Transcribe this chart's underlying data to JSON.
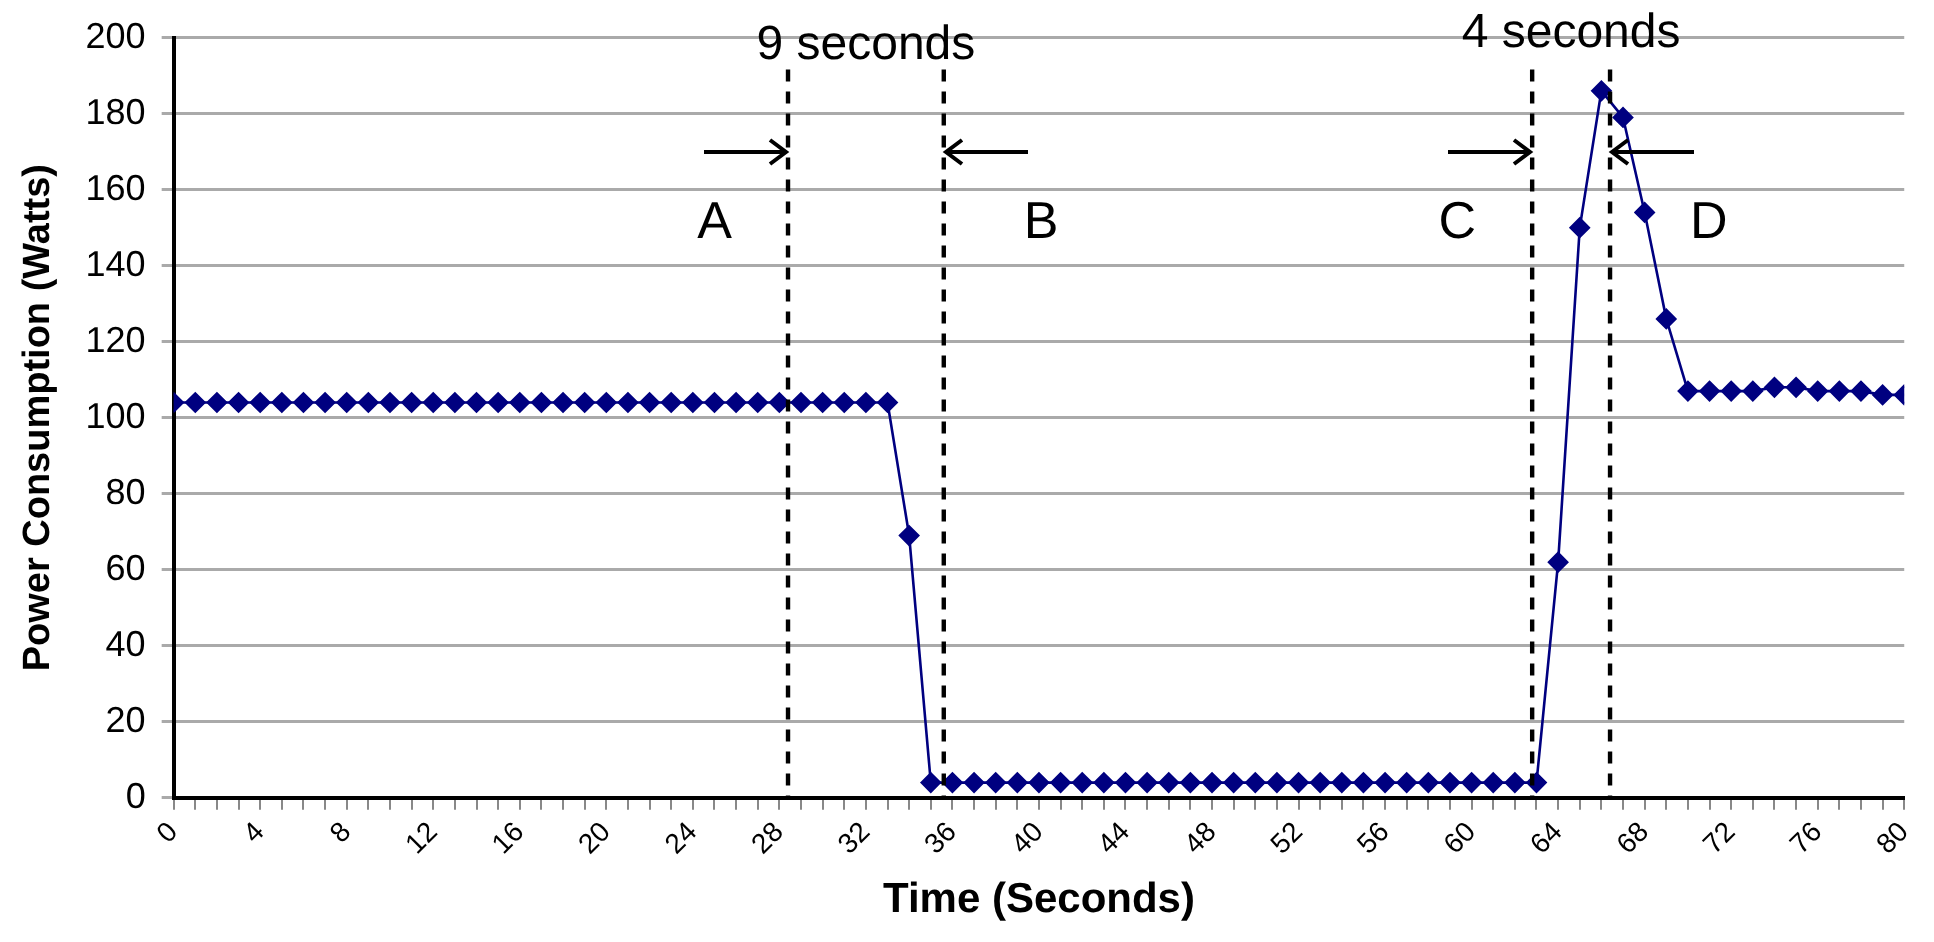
{
  "chart_data": {
    "type": "line",
    "xlabel": "Time (Seconds)",
    "ylabel": "Power Consumption (Watts)",
    "series": [
      {
        "color": "#000080",
        "x": [
          0,
          1,
          2,
          3,
          4,
          5,
          6,
          7,
          8,
          9,
          10,
          11,
          12,
          13,
          14,
          15,
          16,
          17,
          18,
          19,
          20,
          21,
          22,
          23,
          24,
          25,
          26,
          27,
          28,
          29,
          30,
          31,
          32,
          33,
          34,
          35,
          36,
          37,
          38,
          39,
          40,
          41,
          42,
          43,
          44,
          45,
          46,
          47,
          48,
          49,
          50,
          51,
          52,
          53,
          54,
          55,
          56,
          57,
          58,
          59,
          60,
          61,
          62,
          63,
          64,
          65,
          66,
          67,
          68,
          69,
          70,
          71,
          72,
          73,
          74,
          75,
          76,
          77,
          78,
          79,
          80
        ],
        "values": [
          104,
          104,
          104,
          104,
          104,
          104,
          104,
          104,
          104,
          104,
          104,
          104,
          104,
          104,
          104,
          104,
          104,
          104,
          104,
          104,
          104,
          104,
          104,
          104,
          104,
          104,
          104,
          104,
          104,
          104,
          104,
          104,
          104,
          104,
          69,
          4,
          4,
          4,
          4,
          4,
          4,
          4,
          4,
          4,
          4,
          4,
          4,
          4,
          4,
          4,
          4,
          4,
          4,
          4,
          4,
          4,
          4,
          4,
          4,
          4,
          4,
          4,
          4,
          4,
          62,
          150,
          186,
          179,
          154,
          126,
          107,
          107,
          107,
          107,
          108,
          108,
          107,
          107,
          107,
          106,
          106
        ]
      }
    ],
    "xlim": [
      0,
      80
    ],
    "xticks": [
      0,
      {
        "value": 1,
        "label": null
      },
      {
        "value": 2,
        "label": null
      },
      {
        "value": 3,
        "label": null
      },
      4,
      {
        "value": 5,
        "label": null
      },
      {
        "value": 6,
        "label": null
      },
      {
        "value": 7,
        "label": null
      },
      8,
      {
        "value": 9,
        "label": null
      },
      {
        "value": 10,
        "label": null
      },
      {
        "value": 11,
        "label": null
      },
      12,
      {
        "value": 13,
        "label": null
      },
      {
        "value": 14,
        "label": null
      },
      {
        "value": 15,
        "label": null
      },
      16,
      {
        "value": 17,
        "label": null
      },
      {
        "value": 18,
        "label": null
      },
      {
        "value": 19,
        "label": null
      },
      20,
      {
        "value": 21,
        "label": null
      },
      {
        "value": 22,
        "label": null
      },
      {
        "value": 23,
        "label": null
      },
      24,
      {
        "value": 25,
        "label": null
      },
      {
        "value": 26,
        "label": null
      },
      {
        "value": 27,
        "label": null
      },
      28,
      {
        "value": 29,
        "label": null
      },
      {
        "value": 30,
        "label": null
      },
      {
        "value": 31,
        "label": null
      },
      32,
      {
        "value": 33,
        "label": null
      },
      {
        "value": 34,
        "label": null
      },
      {
        "value": 35,
        "label": null
      },
      36,
      {
        "value": 37,
        "label": null
      },
      {
        "value": 38,
        "label": null
      },
      {
        "value": 39,
        "label": null
      },
      40,
      {
        "value": 41,
        "label": null
      },
      {
        "value": 42,
        "label": null
      },
      {
        "value": 43,
        "label": null
      },
      44,
      {
        "value": 45,
        "label": null
      },
      {
        "value": 46,
        "label": null
      },
      {
        "value": 47,
        "label": null
      },
      48,
      {
        "value": 49,
        "label": null
      },
      {
        "value": 50,
        "label": null
      },
      {
        "value": 51,
        "label": null
      },
      52,
      {
        "value": 53,
        "label": null
      },
      {
        "value": 54,
        "label": null
      },
      {
        "value": 55,
        "label": null
      },
      56,
      {
        "value": 57,
        "label": null
      },
      {
        "value": 58,
        "label": null
      },
      {
        "value": 59,
        "label": null
      },
      60,
      {
        "value": 61,
        "label": null
      },
      {
        "value": 62,
        "label": null
      },
      {
        "value": 63,
        "label": null
      },
      64,
      {
        "value": 65,
        "label": null
      },
      {
        "value": 66,
        "label": null
      },
      {
        "value": 67,
        "label": null
      },
      68,
      {
        "value": 69,
        "label": null
      },
      {
        "value": 70,
        "label": null
      },
      {
        "value": 71,
        "label": null
      },
      72,
      {
        "value": 73,
        "label": null
      },
      {
        "value": 74,
        "label": null
      },
      {
        "value": 75,
        "label": null
      },
      76,
      {
        "value": 77,
        "label": null
      },
      {
        "value": 78,
        "label": null
      },
      {
        "value": 79,
        "label": null
      },
      80
    ],
    "ylim": [
      0,
      200
    ],
    "yticks": [
      0,
      20,
      40,
      60,
      80,
      100,
      120,
      140,
      160,
      180,
      200
    ],
    "grid": "y",
    "legend": false,
    "marker": "diamond",
    "line_style": "solid",
    "ref_lines": [
      {
        "axis": "x",
        "value": 28.4,
        "label": "A",
        "color": "#000000",
        "line_style": "dashed"
      },
      {
        "axis": "x",
        "value": 35.6,
        "label": "B",
        "color": "#000000",
        "line_style": "dashed"
      },
      {
        "axis": "x",
        "value": 62.8,
        "label": "C",
        "color": "#000000",
        "line_style": "dashed"
      },
      {
        "axis": "x",
        "value": 66.4,
        "label": "D",
        "color": "#000000",
        "line_style": "dashed"
      }
    ],
    "annotations": [
      "9 seconds",
      "4 seconds"
    ]
  }
}
